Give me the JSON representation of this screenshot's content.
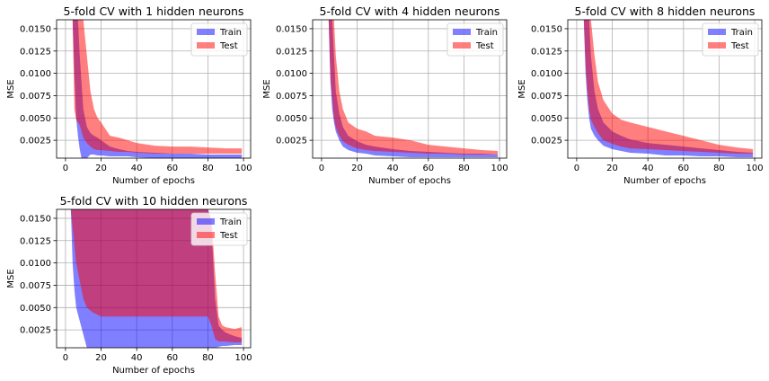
{
  "colors": {
    "train": "#0000ff",
    "test": "#ff0000",
    "grid": "#b0b0b0"
  },
  "chart_data": [
    {
      "type": "area",
      "title": "5-fold CV with 1 hidden neurons",
      "xlabel": "Number of epochs",
      "ylabel": "MSE",
      "xlim": [
        -5,
        104
      ],
      "ylim": [
        0.0005,
        0.016
      ],
      "xticks": [
        0,
        20,
        40,
        60,
        80,
        100
      ],
      "xtick_labels": [
        "0",
        "20",
        "40",
        "60",
        "80",
        "100"
      ],
      "yticks": [
        0.0025,
        0.005,
        0.0075,
        0.01,
        0.0125,
        0.015
      ],
      "ytick_labels": [
        "0.0025",
        "0.0050",
        "0.0075",
        "0.0100",
        "0.0125",
        "0.0150"
      ],
      "grid": true,
      "legend": "upper right",
      "series": [
        {
          "name": "Train",
          "x": [
            4,
            5,
            6,
            7,
            8,
            9,
            10,
            12,
            14,
            16,
            18,
            20,
            25,
            30,
            35,
            40,
            50,
            60,
            70,
            80,
            90,
            99
          ],
          "low": [
            0.016,
            0.01,
            0.005,
            0.003,
            0.0015,
            0.0005,
            0.0005,
            0.0005,
            0.0009,
            0.0009,
            0.0008,
            0.0008,
            0.0007,
            0.0007,
            0.0007,
            0.0006,
            0.0005,
            0.0005,
            0.0005,
            0.0005,
            0.0005,
            0.0005
          ],
          "high": [
            0.016,
            0.016,
            0.016,
            0.016,
            0.012,
            0.009,
            0.006,
            0.004,
            0.0033,
            0.003,
            0.0028,
            0.0025,
            0.0018,
            0.0015,
            0.0013,
            0.0012,
            0.0011,
            0.001,
            0.001,
            0.0009,
            0.0009,
            0.0009
          ]
        },
        {
          "name": "Test",
          "x": [
            4,
            5,
            6,
            7,
            8,
            9,
            10,
            12,
            14,
            16,
            18,
            20,
            25,
            30,
            35,
            40,
            50,
            60,
            70,
            80,
            90,
            99
          ],
          "low": [
            0.016,
            0.006,
            0.0048,
            0.0045,
            0.0042,
            0.0035,
            0.0028,
            0.0022,
            0.0018,
            0.0015,
            0.0014,
            0.0014,
            0.0013,
            0.0012,
            0.0012,
            0.0011,
            0.001,
            0.001,
            0.001,
            0.001,
            0.001,
            0.001
          ],
          "high": [
            0.016,
            0.016,
            0.016,
            0.016,
            0.016,
            0.016,
            0.016,
            0.012,
            0.008,
            0.006,
            0.005,
            0.0045,
            0.003,
            0.0028,
            0.0025,
            0.0022,
            0.0019,
            0.0018,
            0.0018,
            0.0017,
            0.0016,
            0.0016
          ]
        }
      ]
    },
    {
      "type": "area",
      "title": "5-fold CV with 4 hidden neurons",
      "xlabel": "Number of epochs",
      "ylabel": "MSE",
      "xlim": [
        -5,
        104
      ],
      "ylim": [
        0.0005,
        0.016
      ],
      "xticks": [
        0,
        20,
        40,
        60,
        80,
        100
      ],
      "xtick_labels": [
        "0",
        "20",
        "40",
        "60",
        "80",
        "100"
      ],
      "yticks": [
        0.0025,
        0.005,
        0.0075,
        0.01,
        0.0125,
        0.015
      ],
      "ytick_labels": [
        "0.0025",
        "0.0050",
        "0.0075",
        "0.0100",
        "0.0125",
        "0.0150"
      ],
      "grid": true,
      "legend": "upper right",
      "series": [
        {
          "name": "Train",
          "x": [
            4,
            5,
            6,
            7,
            8,
            10,
            12,
            15,
            20,
            25,
            30,
            40,
            50,
            60,
            70,
            80,
            90,
            99
          ],
          "low": [
            0.016,
            0.009,
            0.006,
            0.0045,
            0.0035,
            0.0025,
            0.0018,
            0.0014,
            0.0011,
            0.001,
            0.0008,
            0.0007,
            0.0006,
            0.0006,
            0.0006,
            0.0006,
            0.0006,
            0.0006
          ],
          "high": [
            0.016,
            0.016,
            0.016,
            0.012,
            0.008,
            0.0055,
            0.004,
            0.003,
            0.0024,
            0.002,
            0.0018,
            0.0015,
            0.0013,
            0.0012,
            0.0011,
            0.001,
            0.001,
            0.0009
          ]
        },
        {
          "name": "Test",
          "x": [
            4,
            5,
            6,
            7,
            8,
            10,
            12,
            15,
            20,
            25,
            30,
            40,
            50,
            60,
            70,
            80,
            90,
            99
          ],
          "low": [
            0.016,
            0.0095,
            0.007,
            0.005,
            0.004,
            0.003,
            0.0024,
            0.002,
            0.0016,
            0.0014,
            0.0013,
            0.0012,
            0.0011,
            0.001,
            0.001,
            0.0009,
            0.0009,
            0.0009
          ],
          "high": [
            0.016,
            0.016,
            0.016,
            0.016,
            0.012,
            0.008,
            0.006,
            0.0045,
            0.0038,
            0.0035,
            0.003,
            0.0028,
            0.0025,
            0.002,
            0.0018,
            0.0016,
            0.0014,
            0.0013
          ]
        }
      ]
    },
    {
      "type": "area",
      "title": "5-fold CV with 8 hidden neurons",
      "xlabel": "Number of epochs",
      "ylabel": "MSE",
      "xlim": [
        -5,
        104
      ],
      "ylim": [
        0.0005,
        0.016
      ],
      "xticks": [
        0,
        20,
        40,
        60,
        80,
        100
      ],
      "xtick_labels": [
        "0",
        "20",
        "40",
        "60",
        "80",
        "100"
      ],
      "yticks": [
        0.0025,
        0.005,
        0.0075,
        0.01,
        0.0125,
        0.015
      ],
      "ytick_labels": [
        "0.0025",
        "0.0050",
        "0.0075",
        "0.0100",
        "0.0125",
        "0.0150"
      ],
      "grid": true,
      "legend": "upper right",
      "series": [
        {
          "name": "Train",
          "x": [
            4,
            5,
            6,
            7,
            8,
            10,
            12,
            15,
            20,
            25,
            30,
            40,
            50,
            60,
            70,
            80,
            90,
            99
          ],
          "low": [
            0.016,
            0.01,
            0.007,
            0.005,
            0.0038,
            0.003,
            0.0025,
            0.0019,
            0.0015,
            0.0013,
            0.0011,
            0.001,
            0.0008,
            0.0008,
            0.0007,
            0.0007,
            0.0006,
            0.0006
          ],
          "high": [
            0.016,
            0.016,
            0.016,
            0.016,
            0.012,
            0.008,
            0.006,
            0.0045,
            0.0035,
            0.003,
            0.0026,
            0.0022,
            0.002,
            0.0018,
            0.0016,
            0.0014,
            0.0012,
            0.0011
          ]
        },
        {
          "name": "Test",
          "x": [
            4,
            5,
            6,
            7,
            8,
            10,
            12,
            15,
            20,
            25,
            30,
            40,
            50,
            60,
            70,
            80,
            90,
            99
          ],
          "low": [
            0.016,
            0.011,
            0.008,
            0.006,
            0.0048,
            0.004,
            0.0033,
            0.0025,
            0.0021,
            0.0018,
            0.0016,
            0.0015,
            0.0014,
            0.0013,
            0.0012,
            0.0011,
            0.001,
            0.001
          ],
          "high": [
            0.016,
            0.016,
            0.016,
            0.016,
            0.016,
            0.012,
            0.009,
            0.007,
            0.0055,
            0.0048,
            0.0045,
            0.004,
            0.0035,
            0.003,
            0.0025,
            0.002,
            0.0017,
            0.0015
          ]
        }
      ]
    },
    {
      "type": "area",
      "title": "5-fold CV with 10 hidden neurons",
      "xlabel": "Number of epochs",
      "ylabel": "MSE",
      "xlim": [
        -5,
        104
      ],
      "ylim": [
        0.0005,
        0.016
      ],
      "xticks": [
        0,
        20,
        40,
        60,
        80,
        100
      ],
      "xtick_labels": [
        "0",
        "20",
        "40",
        "60",
        "80",
        "100"
      ],
      "yticks": [
        0.0025,
        0.005,
        0.0075,
        0.01,
        0.0125,
        0.015
      ],
      "ytick_labels": [
        "0.0025",
        "0.0050",
        "0.0075",
        "0.0100",
        "0.0125",
        "0.0150"
      ],
      "grid": true,
      "legend": "upper right",
      "series": [
        {
          "name": "Train",
          "x": [
            3,
            4,
            5,
            6,
            8,
            10,
            12,
            15,
            20,
            30,
            40,
            50,
            60,
            70,
            80,
            82,
            84,
            86,
            88,
            90,
            95,
            99
          ],
          "low": [
            0.016,
            0.01,
            0.007,
            0.005,
            0.0035,
            0.002,
            0.0005,
            0.0005,
            0.0005,
            0.0005,
            0.0005,
            0.0005,
            0.0005,
            0.0005,
            0.0005,
            0.0005,
            0.0005,
            0.0006,
            0.0007,
            0.0007,
            0.0008,
            0.0008
          ],
          "high": [
            0.016,
            0.016,
            0.016,
            0.016,
            0.016,
            0.016,
            0.016,
            0.016,
            0.016,
            0.016,
            0.016,
            0.016,
            0.016,
            0.016,
            0.016,
            0.014,
            0.006,
            0.003,
            0.0025,
            0.0022,
            0.0018,
            0.0016
          ]
        },
        {
          "name": "Test",
          "x": [
            3,
            4,
            5,
            6,
            8,
            10,
            12,
            15,
            20,
            30,
            40,
            50,
            60,
            70,
            80,
            82,
            84,
            86,
            88,
            90,
            95,
            99
          ],
          "low": [
            0.016,
            0.014,
            0.012,
            0.01,
            0.008,
            0.006,
            0.005,
            0.0045,
            0.004,
            0.004,
            0.004,
            0.004,
            0.004,
            0.004,
            0.004,
            0.003,
            0.0015,
            0.0012,
            0.0012,
            0.0012,
            0.0011,
            0.0011
          ],
          "high": [
            0.016,
            0.016,
            0.016,
            0.016,
            0.016,
            0.016,
            0.016,
            0.016,
            0.016,
            0.016,
            0.016,
            0.016,
            0.016,
            0.016,
            0.016,
            0.015,
            0.009,
            0.004,
            0.003,
            0.0028,
            0.0026,
            0.0028
          ]
        }
      ]
    }
  ]
}
